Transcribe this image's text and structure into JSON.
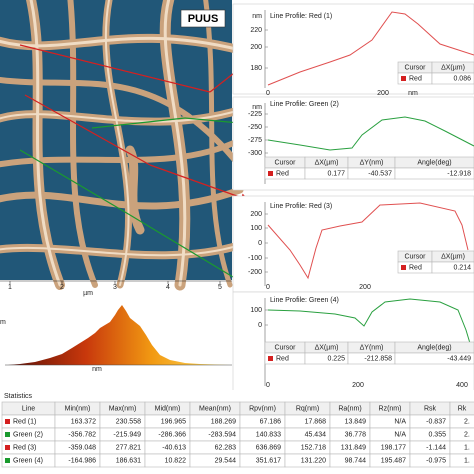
{
  "image": {
    "label": "PUUS",
    "x_ticks": [
      "1",
      "2",
      "3",
      "4",
      "5"
    ],
    "x_unit": "µm"
  },
  "histogram": {
    "left_label": "m",
    "unit": "nm"
  },
  "profiles": [
    {
      "title": "Line Profile: Red (1)",
      "y_unit": "nm",
      "y_ticks": [
        "220",
        "200",
        "180"
      ],
      "x_ticks": [
        "0",
        "200"
      ],
      "x_unit": "nm",
      "cursor_table": {
        "headers": [
          "Cursor",
          "ΔX(µm)"
        ],
        "row": [
          "Red",
          "0.086"
        ]
      }
    },
    {
      "title": "Line Profile: Green (2)",
      "y_unit": "nm",
      "y_ticks": [
        "-225",
        "-250",
        "-275",
        "-300"
      ],
      "cursor_table": {
        "headers": [
          "Cursor",
          "ΔX(µm)",
          "ΔY(nm)",
          "Angle(deg)"
        ],
        "row": [
          "Red",
          "0.177",
          "-40.537",
          "-12.918"
        ]
      }
    },
    {
      "title": "Line Profile: Red (3)",
      "y_ticks": [
        "200",
        "100",
        "0",
        "-100",
        "-200"
      ],
      "x_ticks": [
        "0",
        "200"
      ],
      "cursor_table": {
        "headers": [
          "Cursor",
          "ΔX(µm)"
        ],
        "row": [
          "Red",
          "0.214"
        ]
      }
    },
    {
      "title": "Line Profile: Green (4)",
      "y_ticks": [
        "100",
        "0"
      ],
      "x_ticks": [
        "0",
        "200",
        "400"
      ],
      "cursor_table": {
        "headers": [
          "Cursor",
          "ΔX(µm)",
          "ΔY(nm)",
          "Angle(deg)"
        ],
        "row": [
          "Red",
          "0.225",
          "-212.858",
          "-43.449"
        ]
      }
    }
  ],
  "statistics": {
    "title": "Statistics",
    "headers": [
      "Line",
      "Min(nm)",
      "Max(nm)",
      "Mid(nm)",
      "Mean(nm)",
      "Rpv(nm)",
      "Rq(nm)",
      "Ra(nm)",
      "Rz(nm)",
      "Rsk",
      "Rk"
    ],
    "rows": [
      [
        "Red (1)",
        "163.372",
        "230.558",
        "196.965",
        "188.269",
        "67.186",
        "17.868",
        "13.849",
        "N/A",
        "-0.837",
        "2."
      ],
      [
        "Green (2)",
        "-356.782",
        "-215.949",
        "-286.366",
        "-283.594",
        "140.833",
        "45.434",
        "36.778",
        "N/A",
        "0.355",
        "2."
      ],
      [
        "Red (3)",
        "-359.048",
        "277.821",
        "-40.613",
        "62.283",
        "636.869",
        "152.718",
        "131.849",
        "198.177",
        "-1.144",
        "1."
      ],
      [
        "Green (4)",
        "-164.986",
        "186.631",
        "10.822",
        "29.544",
        "351.617",
        "131.220",
        "98.744",
        "195.487",
        "-0.975",
        "1."
      ]
    ]
  }
}
